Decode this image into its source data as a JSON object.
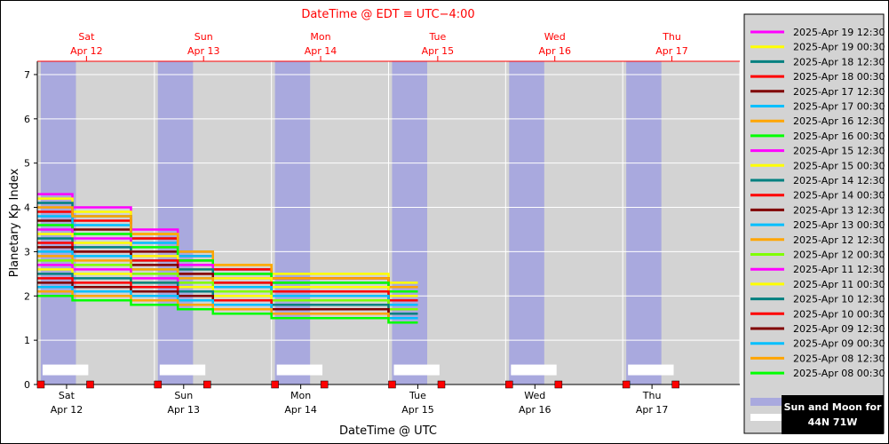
{
  "chart_data": {
    "type": "line",
    "title": "DateTime @ EDT ≡ UTC−4:00",
    "xlabel": "DateTime @ UTC",
    "ylabel": "Planetary Kp Index",
    "ylim": [
      0,
      7.3
    ],
    "yticks": [
      "0",
      "1",
      "2",
      "3",
      "4",
      "5",
      "6",
      "7"
    ],
    "xlim_days": [
      "2025-04-12 00:00 UTC",
      "2025-04-18 00:00 UTC"
    ],
    "x_units": "days since 2025-04-12 00:00 UTC",
    "bottom_axis_days": [
      {
        "dow": "Sat",
        "date": "Apr 12"
      },
      {
        "dow": "Sun",
        "date": "Apr 13"
      },
      {
        "dow": "Mon",
        "date": "Apr 14"
      },
      {
        "dow": "Tue",
        "date": "Apr 15"
      },
      {
        "dow": "Wed",
        "date": "Apr 16"
      },
      {
        "dow": "Thu",
        "date": "Apr 17"
      }
    ],
    "top_axis_days": [
      {
        "dow": "Sat",
        "date": "Apr 12"
      },
      {
        "dow": "Sun",
        "date": "Apr 13"
      },
      {
        "dow": "Mon",
        "date": "Apr 14"
      },
      {
        "dow": "Tue",
        "date": "Apr 15"
      },
      {
        "dow": "Wed",
        "date": "Apr 16"
      },
      {
        "dow": "Thu",
        "date": "Apr 17"
      }
    ],
    "night_bands_days": [
      [
        0.03,
        0.33
      ],
      [
        1.03,
        1.33
      ],
      [
        2.03,
        2.33
      ],
      [
        3.03,
        3.33
      ],
      [
        4.03,
        4.33
      ],
      [
        5.03,
        5.33
      ]
    ],
    "grid": true,
    "legend_placement": "right",
    "series": [
      {
        "name": "2025-Apr 19 12:30",
        "color": "#ff00ff",
        "dashed": false,
        "x": [
          0,
          0.3,
          0.8,
          1.2,
          1.5,
          2.0,
          3.0
        ],
        "y": [
          4.3,
          4.0,
          3.5,
          3.0,
          2.6,
          2.4,
          2.2
        ]
      },
      {
        "name": "2025-Apr 19 00:30",
        "color": "#ffff00",
        "dashed": false,
        "x": [
          0,
          0.3,
          0.8,
          1.2,
          1.5,
          2.0,
          3.0
        ],
        "y": [
          4.2,
          3.9,
          3.4,
          3.0,
          2.7,
          2.5,
          2.3
        ]
      },
      {
        "name": "2025-Apr 18 12:30",
        "color": "#008080",
        "dashed": false,
        "x": [
          0,
          0.3,
          0.8,
          1.2,
          1.5,
          2.0,
          3.0
        ],
        "y": [
          4.1,
          3.8,
          3.3,
          3.0,
          2.6,
          2.4,
          2.2
        ]
      },
      {
        "name": "2025-Apr 18 00:30",
        "color": "#ff0000",
        "dashed": false,
        "x": [
          0,
          0.3,
          0.8,
          1.2,
          1.5,
          2.0,
          3.0
        ],
        "y": [
          3.9,
          3.7,
          3.3,
          2.9,
          2.6,
          2.4,
          2.2
        ]
      },
      {
        "name": "2025-Apr 17 12:30",
        "color": "#800000",
        "dashed": false,
        "x": [
          0,
          0.3,
          0.8,
          1.2,
          1.5,
          2.0,
          3.0
        ],
        "y": [
          3.7,
          3.5,
          3.0,
          2.8,
          2.5,
          2.3,
          2.1
        ]
      },
      {
        "name": "2025-Apr 17 00:30",
        "color": "#00bfff",
        "dashed": false,
        "x": [
          0,
          0.3,
          0.8,
          1.2,
          1.5,
          2.0,
          3.0
        ],
        "y": [
          3.8,
          3.6,
          3.2,
          2.9,
          2.5,
          2.3,
          2.1
        ]
      },
      {
        "name": "2025-Apr 16 12:30",
        "color": "#ffa500",
        "dashed": false,
        "x": [
          0,
          0.3,
          0.8,
          1.2,
          1.5,
          2.0,
          3.0
        ],
        "y": [
          4.0,
          3.8,
          3.4,
          3.0,
          2.7,
          2.4,
          2.2
        ]
      },
      {
        "name": "2025-Apr 16 00:30",
        "color": "#00ff00",
        "dashed": false,
        "x": [
          0,
          0.3,
          0.8,
          1.2,
          1.5,
          2.0,
          3.0
        ],
        "y": [
          3.6,
          3.4,
          3.1,
          2.8,
          2.5,
          2.3,
          2.1
        ]
      },
      {
        "name": "2025-Apr 15 12:30",
        "color": "#ff00ff",
        "dashed": false,
        "x": [
          0,
          0.3,
          0.8,
          1.2,
          1.5,
          2.0,
          3.0
        ],
        "y": [
          3.5,
          3.3,
          2.9,
          2.7,
          2.4,
          2.2,
          2.0
        ]
      },
      {
        "name": "2025-Apr 15 00:30",
        "color": "#ffff00",
        "dashed": false,
        "x": [
          0,
          0.3,
          0.8,
          1.2,
          1.5,
          2.0,
          3.0
        ],
        "y": [
          3.4,
          3.2,
          2.9,
          2.6,
          2.4,
          2.2,
          2.0
        ]
      },
      {
        "name": "2025-Apr 14 12:30",
        "color": "#008080",
        "dashed": false,
        "x": [
          0,
          0.3,
          0.8,
          1.2,
          1.5,
          2.0,
          3.0
        ],
        "y": [
          3.3,
          3.1,
          2.8,
          2.6,
          2.3,
          2.1,
          1.9
        ]
      },
      {
        "name": "2025-Apr 14 00:30",
        "color": "#ff0000",
        "dashed": false,
        "x": [
          0,
          0.3,
          0.8,
          1.2,
          1.5,
          2.0,
          3.0
        ],
        "y": [
          3.2,
          3.0,
          2.8,
          2.5,
          2.3,
          2.1,
          1.9
        ]
      },
      {
        "name": "2025-Apr 13 12:30",
        "color": "#800000",
        "dashed": false,
        "x": [
          0,
          0.3,
          0.8,
          1.2,
          1.5,
          2.0,
          3.0
        ],
        "y": [
          3.1,
          3.0,
          2.7,
          2.5,
          2.2,
          2.0,
          1.8
        ]
      },
      {
        "name": "2025-Apr 13 00:30",
        "color": "#00bfff",
        "dashed": false,
        "x": [
          0,
          0.3,
          0.8,
          1.2,
          1.5,
          2.0,
          3.0
        ],
        "y": [
          3.0,
          2.9,
          2.6,
          2.4,
          2.2,
          2.0,
          1.8
        ]
      },
      {
        "name": "2025-Apr 12 12:30",
        "color": "#ffa500",
        "dashed": false,
        "x": [
          0,
          0.3,
          0.8,
          1.2,
          1.5,
          2.0,
          3.0
        ],
        "y": [
          2.9,
          2.8,
          2.6,
          2.4,
          2.1,
          1.9,
          1.7
        ]
      },
      {
        "name": "2025-Apr 12 00:30",
        "color": "#7fff00",
        "dashed": false,
        "x": [
          0,
          0.3,
          0.8,
          1.2,
          1.5,
          2.0,
          3.0
        ],
        "y": [
          2.8,
          2.7,
          2.5,
          2.3,
          2.1,
          1.9,
          1.7
        ]
      },
      {
        "name": "2025-Apr 11 12:30",
        "color": "#ff00ff",
        "dashed": false,
        "x": [
          0,
          0.3,
          0.8,
          1.2,
          1.5,
          2.0,
          3.0
        ],
        "y": [
          2.7,
          2.6,
          2.4,
          2.2,
          2.0,
          1.8,
          1.6
        ]
      },
      {
        "name": "2025-Apr 11 00:30",
        "color": "#ffff00",
        "dashed": false,
        "x": [
          0,
          0.3,
          0.8,
          1.2,
          1.5,
          2.0,
          3.0
        ],
        "y": [
          2.6,
          2.5,
          2.3,
          2.2,
          2.0,
          1.8,
          1.6
        ]
      },
      {
        "name": "2025-Apr 10 12:30",
        "color": "#008080",
        "dashed": false,
        "x": [
          0,
          0.3,
          0.8,
          1.2,
          1.5,
          2.0,
          3.0
        ],
        "y": [
          2.5,
          2.4,
          2.3,
          2.1,
          1.9,
          1.8,
          1.6
        ]
      },
      {
        "name": "2025-Apr 10 00:30",
        "color": "#ff0000",
        "dashed": false,
        "x": [
          0,
          0.3,
          0.8,
          1.2,
          1.5,
          2.0,
          3.0
        ],
        "y": [
          2.4,
          2.3,
          2.2,
          2.0,
          1.9,
          1.7,
          1.5
        ]
      },
      {
        "name": "2025-Apr 09 12:30",
        "color": "#800000",
        "dashed": false,
        "x": [
          0,
          0.3,
          0.8,
          1.2,
          1.5,
          2.0,
          3.0
        ],
        "y": [
          2.3,
          2.2,
          2.1,
          2.0,
          1.8,
          1.7,
          1.5
        ]
      },
      {
        "name": "2025-Apr 09 00:30",
        "color": "#00bfff",
        "dashed": false,
        "x": [
          0,
          0.3,
          0.8,
          1.2,
          1.5,
          2.0,
          3.0
        ],
        "y": [
          2.2,
          2.1,
          2.0,
          1.9,
          1.8,
          1.6,
          1.5
        ]
      },
      {
        "name": "2025-Apr 08 12:30",
        "color": "#ffa500",
        "dashed": false,
        "x": [
          0,
          0.3,
          0.8,
          1.2,
          1.5,
          2.0,
          3.0
        ],
        "y": [
          2.1,
          2.0,
          1.9,
          1.8,
          1.7,
          1.6,
          1.4
        ]
      },
      {
        "name": "2025-Apr 08 00:30",
        "color": "#00ff00",
        "dashed": false,
        "x": [
          0,
          0.3,
          0.8,
          1.2,
          1.5,
          2.0,
          3.0
        ],
        "y": [
          2.0,
          1.9,
          1.8,
          1.7,
          1.6,
          1.5,
          1.4
        ]
      }
    ]
  },
  "badge": {
    "line1": "Sun and Moon for",
    "line2": "44N 71W"
  }
}
